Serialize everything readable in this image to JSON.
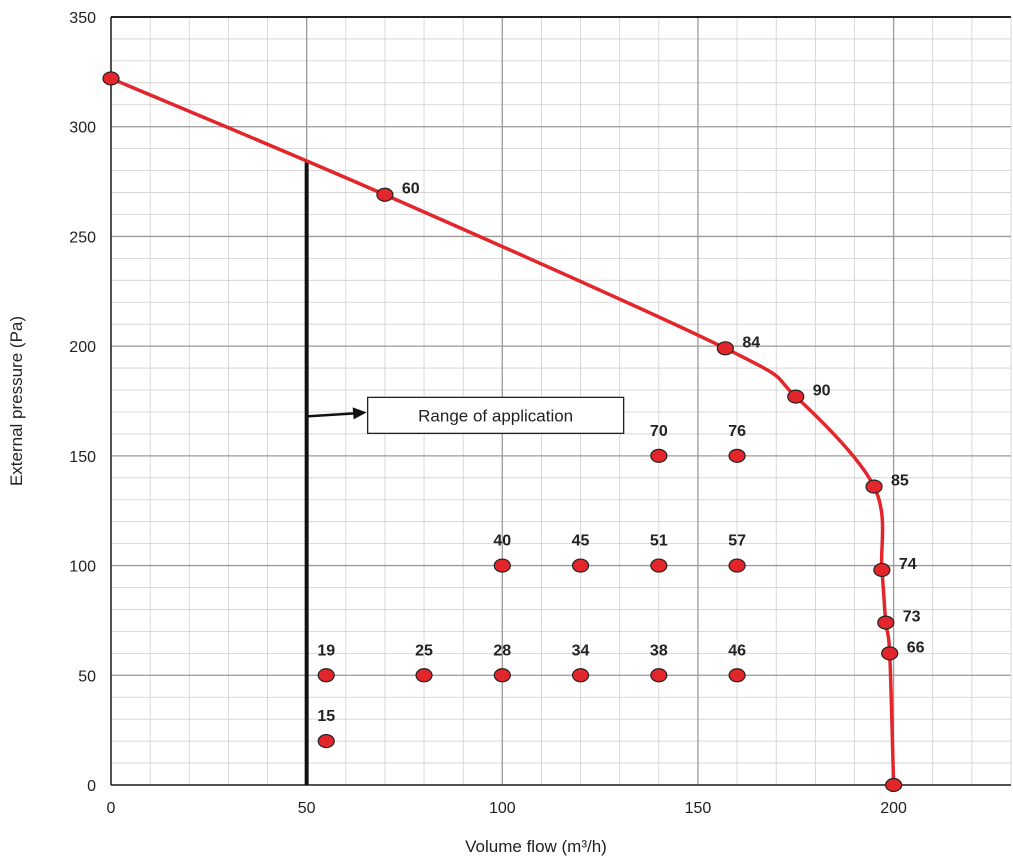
{
  "chart_data": {
    "type": "line",
    "title": "",
    "xlabel": "Volume flow (m³/h)",
    "ylabel": "External pressure (Pa)",
    "xlim": [
      0,
      230
    ],
    "ylim": [
      0,
      350
    ],
    "x_ticks": [
      0,
      50,
      100,
      150,
      200
    ],
    "y_ticks": [
      0,
      50,
      100,
      150,
      200,
      250,
      300,
      350
    ],
    "grid": true,
    "legend": "none",
    "curve_color": "#e3262b",
    "marker_color": "#e3262b",
    "curve": {
      "points": [
        {
          "x": 0,
          "y": 322,
          "label": ""
        },
        {
          "x": 70,
          "y": 269,
          "label": "60"
        },
        {
          "x": 157,
          "y": 199,
          "label": "84"
        },
        {
          "x": 175,
          "y": 177,
          "label": "90"
        },
        {
          "x": 195,
          "y": 136,
          "label": "85"
        },
        {
          "x": 197,
          "y": 98,
          "label": "74"
        },
        {
          "x": 198,
          "y": 74,
          "label": "73"
        },
        {
          "x": 199,
          "y": 60,
          "label": "66"
        },
        {
          "x": 200,
          "y": 0,
          "label": ""
        }
      ]
    },
    "scatter_points": [
      {
        "x": 140,
        "y": 150,
        "label": "70"
      },
      {
        "x": 160,
        "y": 150,
        "label": "76"
      },
      {
        "x": 100,
        "y": 100,
        "label": "40"
      },
      {
        "x": 120,
        "y": 100,
        "label": "45"
      },
      {
        "x": 140,
        "y": 100,
        "label": "51"
      },
      {
        "x": 160,
        "y": 100,
        "label": "57"
      },
      {
        "x": 55,
        "y": 50,
        "label": "19"
      },
      {
        "x": 80,
        "y": 50,
        "label": "25"
      },
      {
        "x": 100,
        "y": 50,
        "label": "28"
      },
      {
        "x": 120,
        "y": 50,
        "label": "34"
      },
      {
        "x": 140,
        "y": 50,
        "label": "38"
      },
      {
        "x": 160,
        "y": 50,
        "label": "46"
      },
      {
        "x": 55,
        "y": 20,
        "label": "15"
      }
    ],
    "application_limit": {
      "x": 50,
      "y_top": 284
    },
    "annotation": {
      "text": "Range of application",
      "arrow_y": 168
    }
  }
}
